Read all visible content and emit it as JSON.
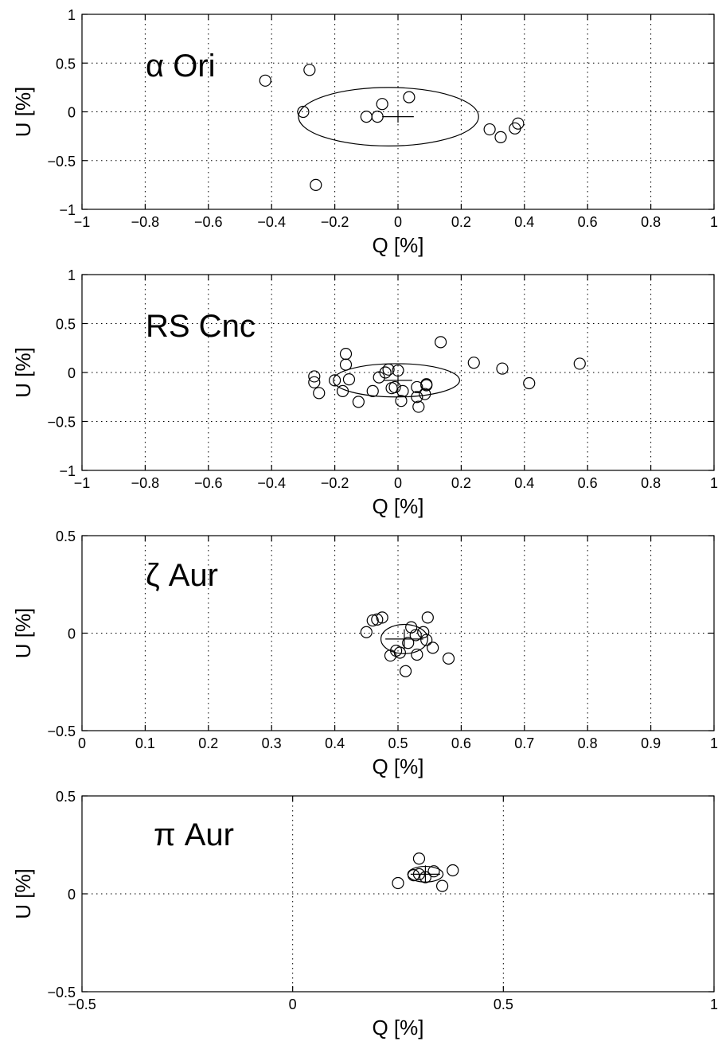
{
  "chart_data": [
    {
      "type": "scatter",
      "annotation": "α Ori",
      "xlabel": "Q [%]",
      "ylabel": "U [%]",
      "xlim": [
        -1,
        1
      ],
      "ylim": [
        -1,
        1
      ],
      "xticks": [
        -1,
        -0.8,
        -0.6,
        -0.4,
        -0.2,
        0,
        0.2,
        0.4,
        0.6,
        0.8,
        1
      ],
      "xtick_labels": [
        "−1",
        "−0.8",
        "−0.6",
        "−0.4",
        "−0.2",
        "0",
        "0.2",
        "0.4",
        "0.6",
        "0.8",
        "1"
      ],
      "yticks": [
        -1,
        -0.5,
        0,
        0.5,
        1
      ],
      "ytick_labels": [
        "−1",
        "−0.5",
        "0",
        "0.5",
        "1"
      ],
      "grid": true,
      "points": [
        [
          -0.42,
          0.32
        ],
        [
          -0.28,
          0.43
        ],
        [
          -0.3,
          0.0
        ],
        [
          -0.26,
          -0.75
        ],
        [
          -0.1,
          -0.05
        ],
        [
          -0.065,
          -0.05
        ],
        [
          -0.05,
          0.08
        ],
        [
          0.035,
          0.15
        ],
        [
          0.29,
          -0.18
        ],
        [
          0.325,
          -0.26
        ],
        [
          0.37,
          -0.17
        ],
        [
          0.38,
          -0.12
        ]
      ],
      "mean": [
        0.0,
        -0.05
      ],
      "mean_err": [
        0.05,
        0.06
      ],
      "ellipse": {
        "cx": -0.03,
        "cy": -0.05,
        "rx": 0.285,
        "ry": 0.3
      }
    },
    {
      "type": "scatter",
      "annotation": "RS Cnc",
      "xlabel": "Q [%]",
      "ylabel": "U [%]",
      "xlim": [
        -1,
        1
      ],
      "ylim": [
        -1,
        1
      ],
      "xticks": [
        -1,
        -0.8,
        -0.6,
        -0.4,
        -0.2,
        0,
        0.2,
        0.4,
        0.6,
        0.8,
        1
      ],
      "xtick_labels": [
        "−1",
        "−0.8",
        "−0.6",
        "−0.4",
        "−0.2",
        "0",
        "0.2",
        "0.4",
        "0.6",
        "0.8",
        "1"
      ],
      "yticks": [
        -1,
        -0.5,
        0,
        0.5,
        1
      ],
      "ytick_labels": [
        "−1",
        "−0.5",
        "0",
        "0.5",
        "1"
      ],
      "grid": true,
      "points": [
        [
          -0.265,
          -0.04
        ],
        [
          -0.265,
          -0.1
        ],
        [
          -0.25,
          -0.21
        ],
        [
          -0.2,
          -0.08
        ],
        [
          -0.175,
          -0.19
        ],
        [
          -0.165,
          0.19
        ],
        [
          -0.165,
          0.08
        ],
        [
          -0.155,
          -0.07
        ],
        [
          -0.125,
          -0.3
        ],
        [
          -0.08,
          -0.19
        ],
        [
          -0.06,
          -0.05
        ],
        [
          -0.04,
          0.0
        ],
        [
          -0.03,
          0.03
        ],
        [
          -0.02,
          -0.16
        ],
        [
          -0.01,
          -0.15
        ],
        [
          0.0,
          0.02
        ],
        [
          0.01,
          -0.29
        ],
        [
          0.015,
          -0.19
        ],
        [
          0.06,
          -0.15
        ],
        [
          0.06,
          -0.25
        ],
        [
          0.065,
          -0.35
        ],
        [
          0.085,
          -0.22
        ],
        [
          0.09,
          -0.13
        ],
        [
          0.09,
          -0.12
        ],
        [
          0.135,
          0.31
        ],
        [
          0.24,
          0.1
        ],
        [
          0.33,
          0.04
        ],
        [
          0.415,
          -0.11
        ],
        [
          0.575,
          0.09
        ]
      ],
      "mean": [
        0.0,
        -0.08
      ],
      "mean_err": [
        0.045,
        0.06
      ],
      "ellipse": {
        "cx": -0.005,
        "cy": -0.08,
        "rx": 0.2,
        "ry": 0.17
      }
    },
    {
      "type": "scatter",
      "annotation": "ζ Aur",
      "xlabel": "Q [%]",
      "ylabel": "U [%]",
      "xlim": [
        0,
        1
      ],
      "ylim": [
        -0.5,
        0.5
      ],
      "xticks": [
        0,
        0.1,
        0.2,
        0.3,
        0.4,
        0.5,
        0.6,
        0.7,
        0.8,
        0.9,
        1
      ],
      "xtick_labels": [
        "0",
        "0.1",
        "0.2",
        "0.3",
        "0.4",
        "0.5",
        "0.6",
        "0.7",
        "0.8",
        "0.9",
        "1"
      ],
      "yticks": [
        -0.5,
        0,
        0.5
      ],
      "ytick_labels": [
        "−0.5",
        "0",
        "0.5"
      ],
      "grid": true,
      "points": [
        [
          0.45,
          0.005
        ],
        [
          0.46,
          0.065
        ],
        [
          0.467,
          0.07
        ],
        [
          0.475,
          0.08
        ],
        [
          0.488,
          -0.115
        ],
        [
          0.497,
          -0.09
        ],
        [
          0.503,
          -0.1
        ],
        [
          0.512,
          -0.195
        ],
        [
          0.516,
          -0.05
        ],
        [
          0.521,
          0.03
        ],
        [
          0.528,
          -0.01
        ],
        [
          0.53,
          -0.11
        ],
        [
          0.54,
          0.005
        ],
        [
          0.545,
          -0.035
        ],
        [
          0.547,
          0.08
        ],
        [
          0.555,
          -0.075
        ],
        [
          0.58,
          -0.13
        ]
      ],
      "mean": [
        0.51,
        -0.03
      ],
      "mean_err": [
        0.03,
        0.05
      ],
      "ellipse": {
        "cx": 0.51,
        "cy": -0.03,
        "rx": 0.037,
        "ry": 0.075
      }
    },
    {
      "type": "scatter",
      "annotation": "π Aur",
      "xlabel": "Q [%]",
      "ylabel": "U [%]",
      "xlim": [
        -0.5,
        1
      ],
      "ylim": [
        -0.5,
        0.5
      ],
      "xticks": [
        -0.5,
        0,
        0.5,
        1
      ],
      "xtick_labels": [
        "−0.5",
        "0",
        "0.5",
        "1"
      ],
      "yticks": [
        -0.5,
        0,
        0.5
      ],
      "ytick_labels": [
        "−0.5",
        "0",
        "0.5"
      ],
      "grid": true,
      "points": [
        [
          0.25,
          0.055
        ],
        [
          0.287,
          0.095
        ],
        [
          0.3,
          0.18
        ],
        [
          0.3,
          0.1
        ],
        [
          0.315,
          0.085
        ],
        [
          0.335,
          0.115
        ],
        [
          0.355,
          0.04
        ],
        [
          0.38,
          0.12
        ]
      ],
      "mean": [
        0.315,
        0.1
      ],
      "mean_err": [
        0.035,
        0.045
      ],
      "ellipse": {
        "cx": 0.315,
        "cy": 0.1,
        "rx": 0.042,
        "ry": 0.04
      }
    }
  ]
}
